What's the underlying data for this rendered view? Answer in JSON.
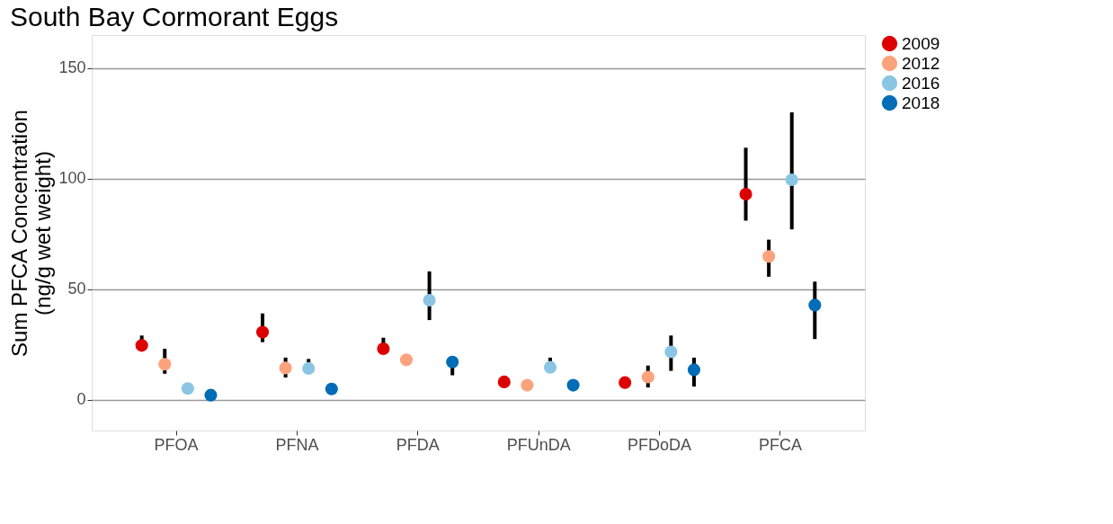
{
  "chart_data": {
    "type": "scatter",
    "title": "South Bay Cormorant Eggs",
    "ylabel": "Sum PFCA Concentration\n(ng/g wet weight)",
    "categories": [
      "PFOA",
      "PFNA",
      "PFDA",
      "PFUnDA",
      "PFDoDA",
      "PFCA"
    ],
    "series": [
      {
        "name": "2009",
        "color": "#dd0000",
        "values": [
          24.5,
          30.5,
          23,
          8,
          7.7,
          93
        ],
        "errors": [
          [
            24.5,
            29
          ],
          [
            26,
            39
          ],
          [
            21,
            28
          ],
          null,
          null,
          [
            81,
            114
          ]
        ]
      },
      {
        "name": "2012",
        "color": "#fca37e",
        "values": [
          16,
          14.3,
          18,
          6.5,
          10.2,
          64.8
        ],
        "errors": [
          [
            11.7,
            23
          ],
          [
            10,
            19
          ],
          null,
          null,
          [
            5.5,
            15.4
          ],
          [
            55.6,
            72.4
          ]
        ]
      },
      {
        "name": "2016",
        "color": "#8ac6e3",
        "values": [
          5,
          14.1,
          45,
          14.6,
          21.6,
          99.5
        ],
        "errors": [
          null,
          [
            14.1,
            18.4
          ],
          [
            36,
            58
          ],
          [
            14,
            19
          ],
          [
            13,
            29
          ],
          [
            77,
            130
          ]
        ]
      },
      {
        "name": "2018",
        "color": "#006db6",
        "values": [
          2,
          4.8,
          17,
          6.5,
          13.5,
          42.8
        ],
        "errors": [
          null,
          null,
          [
            11,
            17
          ],
          null,
          [
            5.9,
            19
          ],
          [
            27.4,
            53.4
          ]
        ]
      }
    ],
    "ylim": [
      -14,
      165
    ],
    "yticks": [
      0,
      50,
      100,
      150
    ],
    "grid": "y",
    "legend": "right",
    "marker": "circle"
  }
}
